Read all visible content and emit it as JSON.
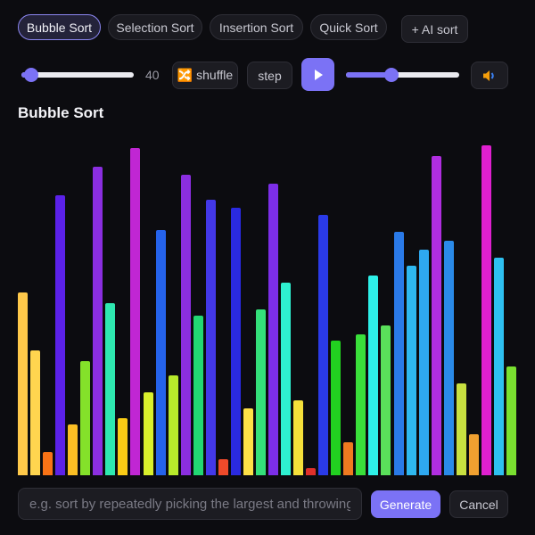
{
  "tabs": [
    {
      "label": "Bubble Sort",
      "active": true
    },
    {
      "label": "Selection Sort",
      "active": false
    },
    {
      "label": "Insertion Sort",
      "active": false
    },
    {
      "label": "Quick Sort",
      "active": false
    }
  ],
  "ai_sort_label": "+ AI sort",
  "controls": {
    "size_value": "40",
    "size_fraction": 0.09,
    "shuffle_label": "🔀 shuffle",
    "step_label": "step",
    "play_icon": "play-icon",
    "speed_fraction": 0.4,
    "sound_icon": "speaker-icon"
  },
  "visualizer": {
    "title": "Bubble Sort",
    "bars": [
      {
        "v": 0.555,
        "c": "#ffc94a"
      },
      {
        "v": 0.378,
        "c": "#ffd54f"
      },
      {
        "v": 0.071,
        "c": "#f97316"
      },
      {
        "v": 0.848,
        "c": "#5b21e8"
      },
      {
        "v": 0.155,
        "c": "#fbbf24"
      },
      {
        "v": 0.347,
        "c": "#84e12a"
      },
      {
        "v": 0.934,
        "c": "#8b2ee0"
      },
      {
        "v": 0.522,
        "c": "#2ee8b0"
      },
      {
        "v": 0.172,
        "c": "#facc15"
      },
      {
        "v": 0.991,
        "c": "#c026d3"
      },
      {
        "v": 0.252,
        "c": "#d9f02c"
      },
      {
        "v": 0.743,
        "c": "#2563eb"
      },
      {
        "v": 0.303,
        "c": "#b8ea2b"
      },
      {
        "v": 0.911,
        "c": "#8b2ee0"
      },
      {
        "v": 0.483,
        "c": "#22d873"
      },
      {
        "v": 0.836,
        "c": "#4338e8"
      },
      {
        "v": 0.049,
        "c": "#ef4a2a"
      },
      {
        "v": 0.81,
        "c": "#2a2ae0"
      },
      {
        "v": 0.202,
        "c": "#fde047"
      },
      {
        "v": 0.504,
        "c": "#34e07a"
      },
      {
        "v": 0.885,
        "c": "#7c2ee8"
      },
      {
        "v": 0.583,
        "c": "#2ef0d0"
      },
      {
        "v": 0.226,
        "c": "#f5e03a"
      },
      {
        "v": 0.022,
        "c": "#e0302a"
      },
      {
        "v": 0.789,
        "c": "#2a3ae8"
      },
      {
        "v": 0.407,
        "c": "#22d020"
      },
      {
        "v": 0.1,
        "c": "#f07a20"
      },
      {
        "v": 0.427,
        "c": "#3ae03a"
      },
      {
        "v": 0.606,
        "c": "#2ef0e8"
      },
      {
        "v": 0.455,
        "c": "#5ae05a"
      },
      {
        "v": 0.737,
        "c": "#2a7ae8"
      },
      {
        "v": 0.636,
        "c": "#2eb8f0"
      },
      {
        "v": 0.685,
        "c": "#2ea8f0"
      },
      {
        "v": 0.967,
        "c": "#b02ee0"
      },
      {
        "v": 0.712,
        "c": "#2a8ae8"
      },
      {
        "v": 0.278,
        "c": "#c8e040"
      },
      {
        "v": 0.123,
        "c": "#f0a030"
      },
      {
        "v": 1.0,
        "c": "#e020d0"
      },
      {
        "v": 0.659,
        "c": "#2ec0f0"
      },
      {
        "v": 0.33,
        "c": "#7ae030"
      }
    ]
  },
  "prompt": {
    "placeholder": "e.g. sort by repeatedly picking the largest and throwing it to the end",
    "generate_label": "Generate",
    "cancel_label": "Cancel"
  }
}
